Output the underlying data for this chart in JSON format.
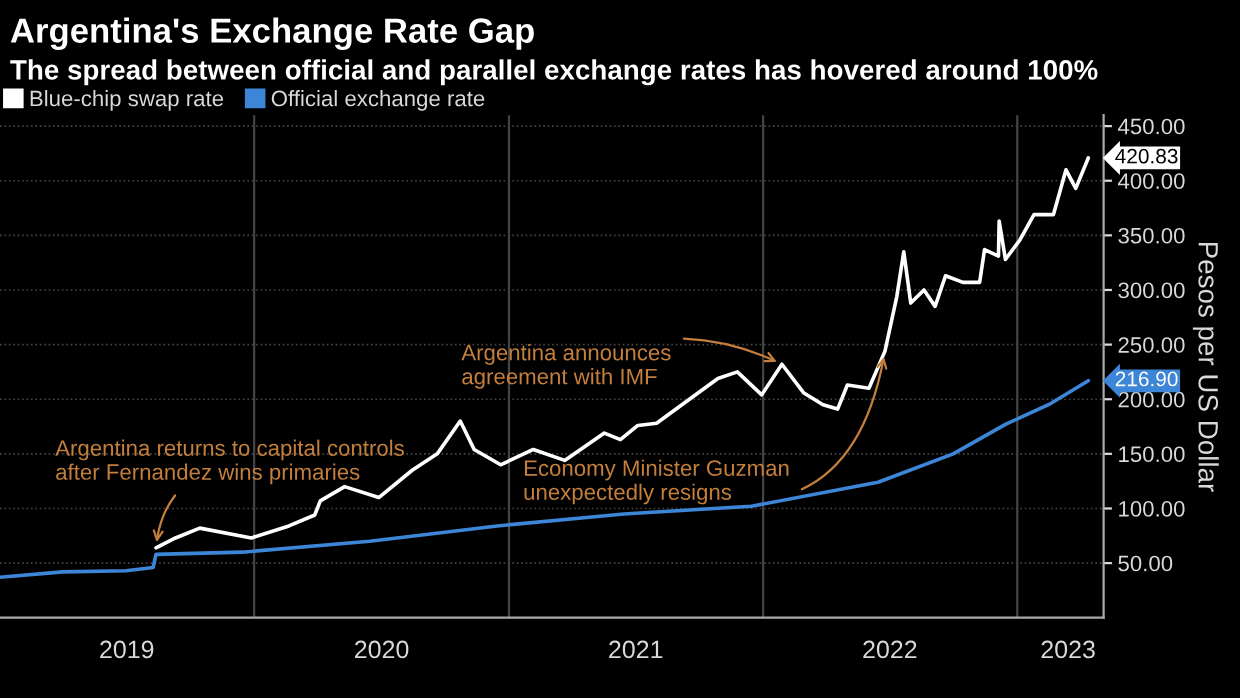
{
  "chart_data": {
    "type": "line",
    "title": "Argentina's Exchange Rate Gap",
    "subtitle": "The spread between official and parallel exchange rates has hovered around 100%",
    "ylabel": "Pesos per US Dollar",
    "series": [
      {
        "name": "Blue-chip swap rate",
        "color": "#ffffff",
        "x": [
          "2019-08-13",
          "2019-09-10",
          "2019-10-15",
          "2019-12-28",
          "2020-02-20",
          "2020-03-28",
          "2020-04-05",
          "2020-05-10",
          "2020-06-28",
          "2020-08-15",
          "2020-09-20",
          "2020-10-23",
          "2020-11-12",
          "2020-12-20",
          "2021-02-05",
          "2021-03-22",
          "2021-05-18",
          "2021-06-10",
          "2021-07-05",
          "2021-08-01",
          "2021-10-28",
          "2021-11-25",
          "2021-12-30",
          "2022-01-28",
          "2022-02-28",
          "2022-03-28",
          "2022-04-18",
          "2022-05-02",
          "2022-06-02",
          "2022-06-25",
          "2022-07-12",
          "2022-07-22",
          "2022-08-01",
          "2022-08-20",
          "2022-09-05",
          "2022-09-20",
          "2022-10-15",
          "2022-11-08",
          "2022-11-15",
          "2022-12-05",
          "2022-12-06",
          "2022-12-15",
          "2023-01-05",
          "2023-01-25",
          "2023-02-22",
          "2023-03-12",
          "2023-03-26",
          "2023-04-13"
        ],
        "values": [
          64,
          73,
          82,
          73,
          84,
          94,
          107,
          120,
          110,
          135,
          150,
          180,
          154,
          140,
          154,
          144,
          169,
          163,
          176,
          178,
          219,
          225,
          204,
          232,
          206,
          195,
          191,
          213,
          210,
          244,
          294,
          335,
          288,
          300,
          285,
          313,
          307,
          307,
          337,
          331,
          363,
          328,
          346,
          369,
          369,
          410,
          393,
          420.83
        ],
        "value_labels": [
          null,
          null,
          null,
          null,
          null,
          null,
          null,
          null,
          null,
          null,
          null,
          null,
          null,
          null,
          null,
          null,
          null,
          null,
          null,
          null,
          null,
          null,
          null,
          null,
          null,
          null,
          null,
          null,
          null,
          null,
          null,
          null,
          null,
          null,
          null,
          null,
          null,
          null,
          null,
          null,
          null,
          null,
          null,
          null,
          null,
          null,
          null,
          "420.83"
        ]
      },
      {
        "name": "Official exchange rate",
        "color": "#3d85d6",
        "x": [
          "2019-01-01",
          "2019-04-01",
          "2019-07-01",
          "2019-08-09",
          "2019-08-13",
          "2019-12-15",
          "2020-06-15",
          "2020-12-15",
          "2021-06-15",
          "2021-12-15",
          "2022-06-15",
          "2022-10-01",
          "2022-12-15",
          "2023-02-15",
          "2023-04-13"
        ],
        "values": [
          37,
          42,
          43,
          46,
          58,
          60,
          70,
          84,
          95,
          102,
          124,
          150,
          177,
          195,
          216.9
        ],
        "value_labels": [
          null,
          null,
          null,
          null,
          null,
          null,
          null,
          null,
          null,
          null,
          null,
          null,
          null,
          null,
          "216.90"
        ]
      }
    ],
    "xlim": [
      "2019-01-01",
      "2023-05-05"
    ],
    "xticks": [
      {
        "value": "2020-01-01",
        "label": null
      },
      {
        "value": "2021-01-01",
        "label": null
      },
      {
        "value": "2022-01-01",
        "label": null
      },
      {
        "value": "2023-01-01",
        "label": null
      },
      {
        "value": "2019-07-02",
        "label": "2019"
      },
      {
        "value": "2020-07-02",
        "label": "2020"
      },
      {
        "value": "2021-07-02",
        "label": "2021"
      },
      {
        "value": "2022-07-02",
        "label": "2022"
      },
      {
        "value": "2023-03-15",
        "label": "2023"
      }
    ],
    "ylim": [
      0,
      460
    ],
    "yticks": [
      {
        "value": 50,
        "label": "50.00"
      },
      {
        "value": 100,
        "label": "100.00"
      },
      {
        "value": 150,
        "label": "150.00"
      },
      {
        "value": 200,
        "label": "200.00"
      },
      {
        "value": 250,
        "label": "250.00"
      },
      {
        "value": 300,
        "label": "300.00"
      },
      {
        "value": 350,
        "label": "350.00"
      },
      {
        "value": 400,
        "label": "400.00"
      },
      {
        "value": 450,
        "label": "450.00"
      }
    ],
    "annotations": [
      {
        "text": "Argentina returns to capital controls\nafter Fernandez wins primaries",
        "x": "2019-08-13",
        "y": 64
      },
      {
        "text": "Argentina announces\nagreement with IMF",
        "x": "2022-01-28",
        "y": 232
      },
      {
        "text": "Economy Minister Guzman\nunexpectedly resigns",
        "x": "2022-06-25",
        "y": 244
      }
    ],
    "grid": true,
    "legend": "top left",
    "line_style": "solid",
    "marker": "none"
  }
}
